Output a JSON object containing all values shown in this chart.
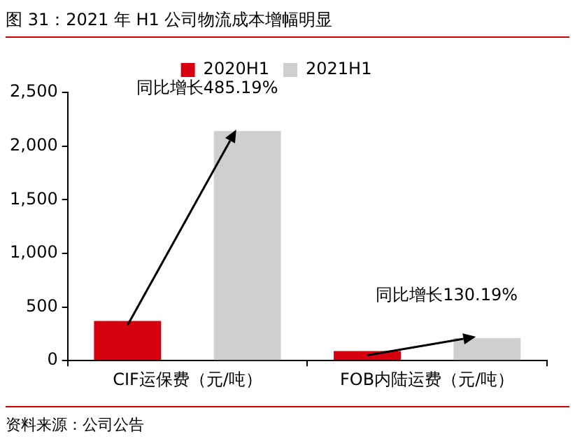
{
  "chart_data": {
    "type": "bar",
    "title": "图 31：2021 年 H1 公司物流成本增幅明显",
    "categories": [
      "CIF运保费（元/吨）",
      "FOB内陆运费（元/吨）"
    ],
    "series": [
      {
        "name": "2020H1",
        "color": "#d7000f",
        "values": [
          370,
          90
        ]
      },
      {
        "name": "2021H1",
        "color": "#d0cece",
        "values": [
          2140,
          210
        ]
      }
    ],
    "ylim": [
      0,
      2500
    ],
    "yticks": [
      {
        "value": 0,
        "label": "0"
      },
      {
        "value": 500,
        "label": "500"
      },
      {
        "value": 1000,
        "label": "1,000"
      },
      {
        "value": 1500,
        "label": "1,500"
      },
      {
        "value": 2000,
        "label": "2,000"
      },
      {
        "value": 2500,
        "label": "2,500"
      }
    ],
    "grid": false,
    "legend": "top",
    "annotations": [
      "同比增长485.19%",
      "同比增长130.19%",
      "资料来源：公司公告"
    ]
  }
}
